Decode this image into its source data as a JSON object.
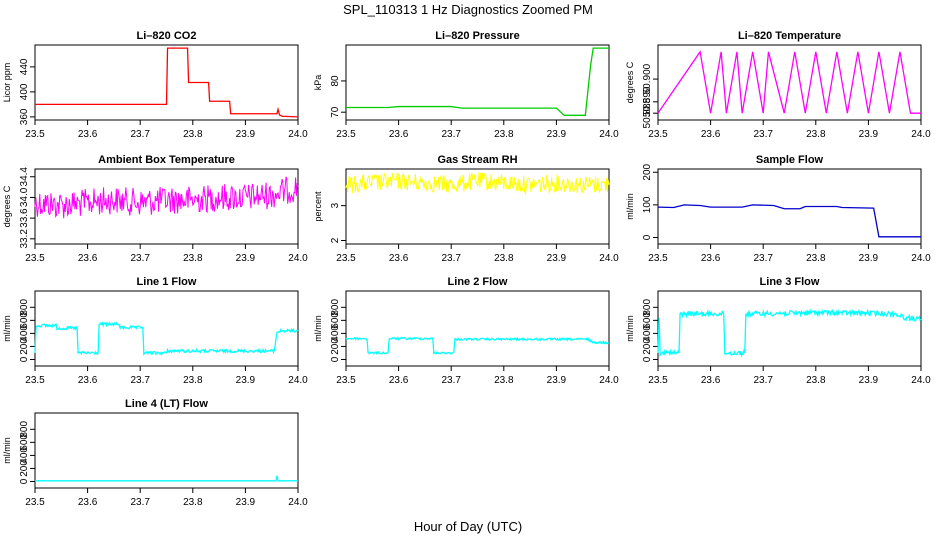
{
  "figure": {
    "title": "SPL_110313  1 Hz Diagnostics Zoomed PM",
    "xlabel": "Hour of Day (UTC)"
  },
  "chart_data": [
    {
      "type": "line",
      "title": "Li–820 CO2",
      "ylabel": "Licor ppm",
      "color": "#ff0000",
      "xlim": [
        23.5,
        24.0
      ],
      "ylim": [
        355,
        475
      ],
      "xticks": [
        23.5,
        23.6,
        23.7,
        23.8,
        23.9,
        24.0
      ],
      "yticks": [
        360,
        400,
        440
      ],
      "series": [
        {
          "x": [
            23.5,
            23.75,
            23.752,
            23.79,
            23.792,
            23.83,
            23.832,
            23.87,
            23.872,
            23.96,
            23.962,
            23.965,
            23.97,
            24.0
          ],
          "y": [
            380,
            380,
            470,
            470,
            415,
            415,
            385,
            385,
            365,
            365,
            372,
            363,
            361,
            360
          ]
        }
      ]
    },
    {
      "type": "line",
      "title": "Li–820 Pressure",
      "ylabel": "kPa",
      "color": "#00cc00",
      "xlim": [
        23.5,
        24.0
      ],
      "ylim": [
        67.5,
        91.5
      ],
      "xticks": [
        23.5,
        23.6,
        23.7,
        23.8,
        23.9,
        24.0
      ],
      "yticks": [
        70,
        80
      ],
      "series": [
        {
          "x": [
            23.5,
            23.58,
            23.6,
            23.7,
            23.72,
            23.9,
            23.915,
            23.955,
            23.965,
            23.97,
            24.0
          ],
          "y": [
            71.5,
            71.5,
            71.8,
            71.8,
            71.3,
            71.3,
            69.0,
            69.0,
            85.0,
            90.5,
            90.5
          ]
        }
      ]
    },
    {
      "type": "line",
      "title": "Li–820 Temperature",
      "ylabel": "degrees C",
      "color": "#ff00ff",
      "xlim": [
        23.5,
        24.0
      ],
      "ylim": [
        50.882,
        50.915
      ],
      "xticks": [
        23.5,
        23.6,
        23.7,
        23.8,
        23.9,
        24.0
      ],
      "yticks": [
        50.885,
        50.89,
        50.9
      ],
      "series": [
        {
          "x": [
            23.5,
            23.58,
            23.6,
            23.62,
            23.63,
            23.65,
            23.66,
            23.68,
            23.7,
            23.71,
            23.74,
            23.76,
            23.78,
            23.8,
            23.82,
            23.84,
            23.86,
            23.88,
            23.9,
            23.92,
            23.94,
            23.96,
            23.98,
            24.0
          ],
          "y": [
            50.885,
            50.912,
            50.885,
            50.912,
            50.885,
            50.912,
            50.885,
            50.912,
            50.885,
            50.912,
            50.885,
            50.912,
            50.885,
            50.912,
            50.885,
            50.912,
            50.885,
            50.912,
            50.885,
            50.912,
            50.885,
            50.912,
            50.885,
            50.885
          ]
        }
      ]
    },
    {
      "type": "line",
      "title": "Ambient Box Temperature",
      "ylabel": "degrees C",
      "color": "#ff00ff",
      "xlim": [
        23.5,
        24.0
      ],
      "ylim": [
        33.1,
        34.55
      ],
      "xticks": [
        23.5,
        23.6,
        23.7,
        23.8,
        23.9,
        24.0
      ],
      "yticks": [
        33.2,
        33.6,
        34.0,
        34.4
      ],
      "series": [
        {
          "x": [
            23.5,
            23.55,
            23.6,
            23.65,
            23.7,
            23.75,
            23.8,
            23.85,
            23.9,
            23.95,
            24.0
          ],
          "y": [
            33.9,
            33.85,
            33.9,
            33.95,
            33.9,
            33.95,
            33.95,
            34.0,
            34.0,
            34.05,
            34.2
          ]
        }
      ]
    },
    {
      "type": "line",
      "title": "Gas Stream RH",
      "ylabel": "percent",
      "color": "#ffff00",
      "xlim": [
        23.5,
        24.0
      ],
      "ylim": [
        1.4,
        3.55
      ],
      "xticks": [
        23.5,
        23.6,
        23.7,
        23.8,
        23.9,
        24.0
      ],
      "yticks": [
        1.5,
        2.5
      ],
      "series": [
        {
          "x": [
            23.5,
            23.55,
            23.6,
            23.65,
            23.7,
            23.75,
            23.8,
            23.85,
            23.9,
            23.95,
            24.0
          ],
          "y": [
            3.1,
            3.15,
            3.2,
            3.15,
            3.1,
            3.2,
            3.15,
            3.1,
            3.15,
            3.1,
            3.1
          ]
        }
      ]
    },
    {
      "type": "line",
      "title": "Sample Flow",
      "ylabel": "ml/min",
      "color": "#0000cc",
      "xlim": [
        23.5,
        24.0
      ],
      "ylim": [
        -20,
        210
      ],
      "xticks": [
        23.5,
        23.6,
        23.7,
        23.8,
        23.9,
        24.0
      ],
      "yticks": [
        0,
        100,
        200
      ],
      "series": [
        {
          "x": [
            23.5,
            23.53,
            23.55,
            23.58,
            23.6,
            23.66,
            23.68,
            23.72,
            23.74,
            23.77,
            23.78,
            23.84,
            23.85,
            23.91,
            23.92,
            24.0
          ],
          "y": [
            93,
            92,
            100,
            98,
            93,
            93,
            100,
            98,
            88,
            88,
            95,
            95,
            92,
            90,
            2,
            2
          ]
        }
      ]
    },
    {
      "type": "line",
      "title": "Line 1 Flow",
      "ylabel": "ml/min",
      "color": "#00ffff",
      "xlim": [
        23.5,
        24.0
      ],
      "ylim": [
        -100,
        1050
      ],
      "xticks": [
        23.5,
        23.6,
        23.7,
        23.8,
        23.9,
        24.0
      ],
      "yticks": [
        0,
        200,
        400,
        600,
        800
      ],
      "series": [
        {
          "x": [
            23.5,
            23.502,
            23.54,
            23.542,
            23.58,
            23.582,
            23.62,
            23.622,
            23.66,
            23.662,
            23.705,
            23.707,
            23.75,
            23.752,
            23.955,
            23.96,
            23.97,
            24.0
          ],
          "y": [
            100,
            520,
            520,
            480,
            480,
            100,
            100,
            540,
            540,
            490,
            490,
            100,
            100,
            130,
            130,
            420,
            440,
            440
          ]
        }
      ]
    },
    {
      "type": "line",
      "title": "Line 2 Flow",
      "ylabel": "ml/min",
      "color": "#00ffff",
      "xlim": [
        23.5,
        24.0
      ],
      "ylim": [
        -100,
        1050
      ],
      "xticks": [
        23.5,
        23.6,
        23.7,
        23.8,
        23.9,
        24.0
      ],
      "yticks": [
        0,
        200,
        400,
        600,
        800
      ],
      "series": [
        {
          "x": [
            23.5,
            23.54,
            23.542,
            23.58,
            23.582,
            23.665,
            23.667,
            23.705,
            23.707,
            23.96,
            23.97,
            24.0
          ],
          "y": [
            320,
            320,
            100,
            100,
            320,
            320,
            100,
            100,
            310,
            310,
            260,
            260
          ]
        }
      ]
    },
    {
      "type": "line",
      "title": "Line 3 Flow",
      "ylabel": "ml/min",
      "color": "#00ffff",
      "xlim": [
        23.5,
        24.0
      ],
      "ylim": [
        -100,
        1050
      ],
      "xticks": [
        23.5,
        23.6,
        23.7,
        23.8,
        23.9,
        24.0
      ],
      "yticks": [
        0,
        200,
        400,
        600,
        800
      ],
      "series": [
        {
          "x": [
            23.5,
            23.502,
            23.504,
            23.54,
            23.542,
            23.625,
            23.627,
            23.665,
            23.667,
            23.75,
            23.8,
            23.9,
            23.95,
            23.97,
            24.0
          ],
          "y": [
            100,
            640,
            100,
            100,
            700,
            700,
            100,
            100,
            700,
            710,
            720,
            710,
            700,
            640,
            620
          ]
        }
      ]
    },
    {
      "type": "line",
      "title": "Line 4 (LT) Flow",
      "ylabel": "ml/min",
      "color": "#00ffff",
      "xlim": [
        23.5,
        24.0
      ],
      "ylim": [
        -100,
        1050
      ],
      "xticks": [
        23.5,
        23.6,
        23.7,
        23.8,
        23.9,
        24.0
      ],
      "yticks": [
        0,
        200,
        400,
        600,
        800
      ],
      "series": [
        {
          "x": [
            23.5,
            23.958,
            23.96,
            23.962,
            24.0
          ],
          "y": [
            10,
            10,
            90,
            10,
            10
          ]
        }
      ]
    }
  ]
}
